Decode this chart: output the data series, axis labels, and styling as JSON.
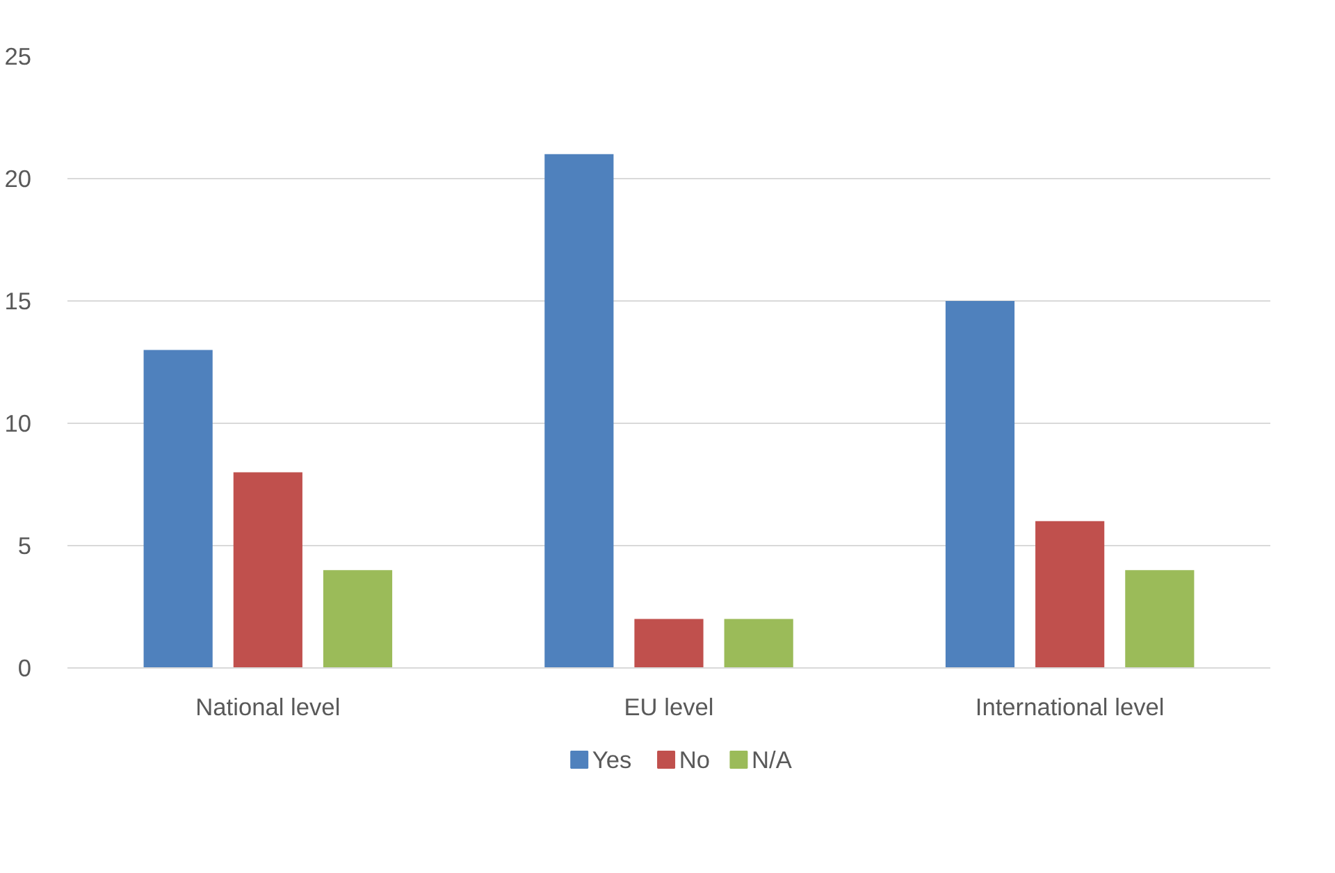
{
  "chart_data": {
    "type": "bar",
    "categories": [
      "National level",
      "EU level",
      "International level"
    ],
    "series": [
      {
        "name": "Yes",
        "color": "#4f81bd",
        "values": [
          13,
          21,
          15
        ]
      },
      {
        "name": "No",
        "color": "#c0504d",
        "values": [
          8,
          2,
          6
        ]
      },
      {
        "name": "N/A",
        "color": "#9bbb59",
        "values": [
          4,
          2,
          4
        ]
      }
    ],
    "ylim": [
      0,
      25
    ],
    "yticks": [
      0,
      5,
      10,
      15,
      20,
      25
    ],
    "grid": "y",
    "legend": "bottom"
  }
}
